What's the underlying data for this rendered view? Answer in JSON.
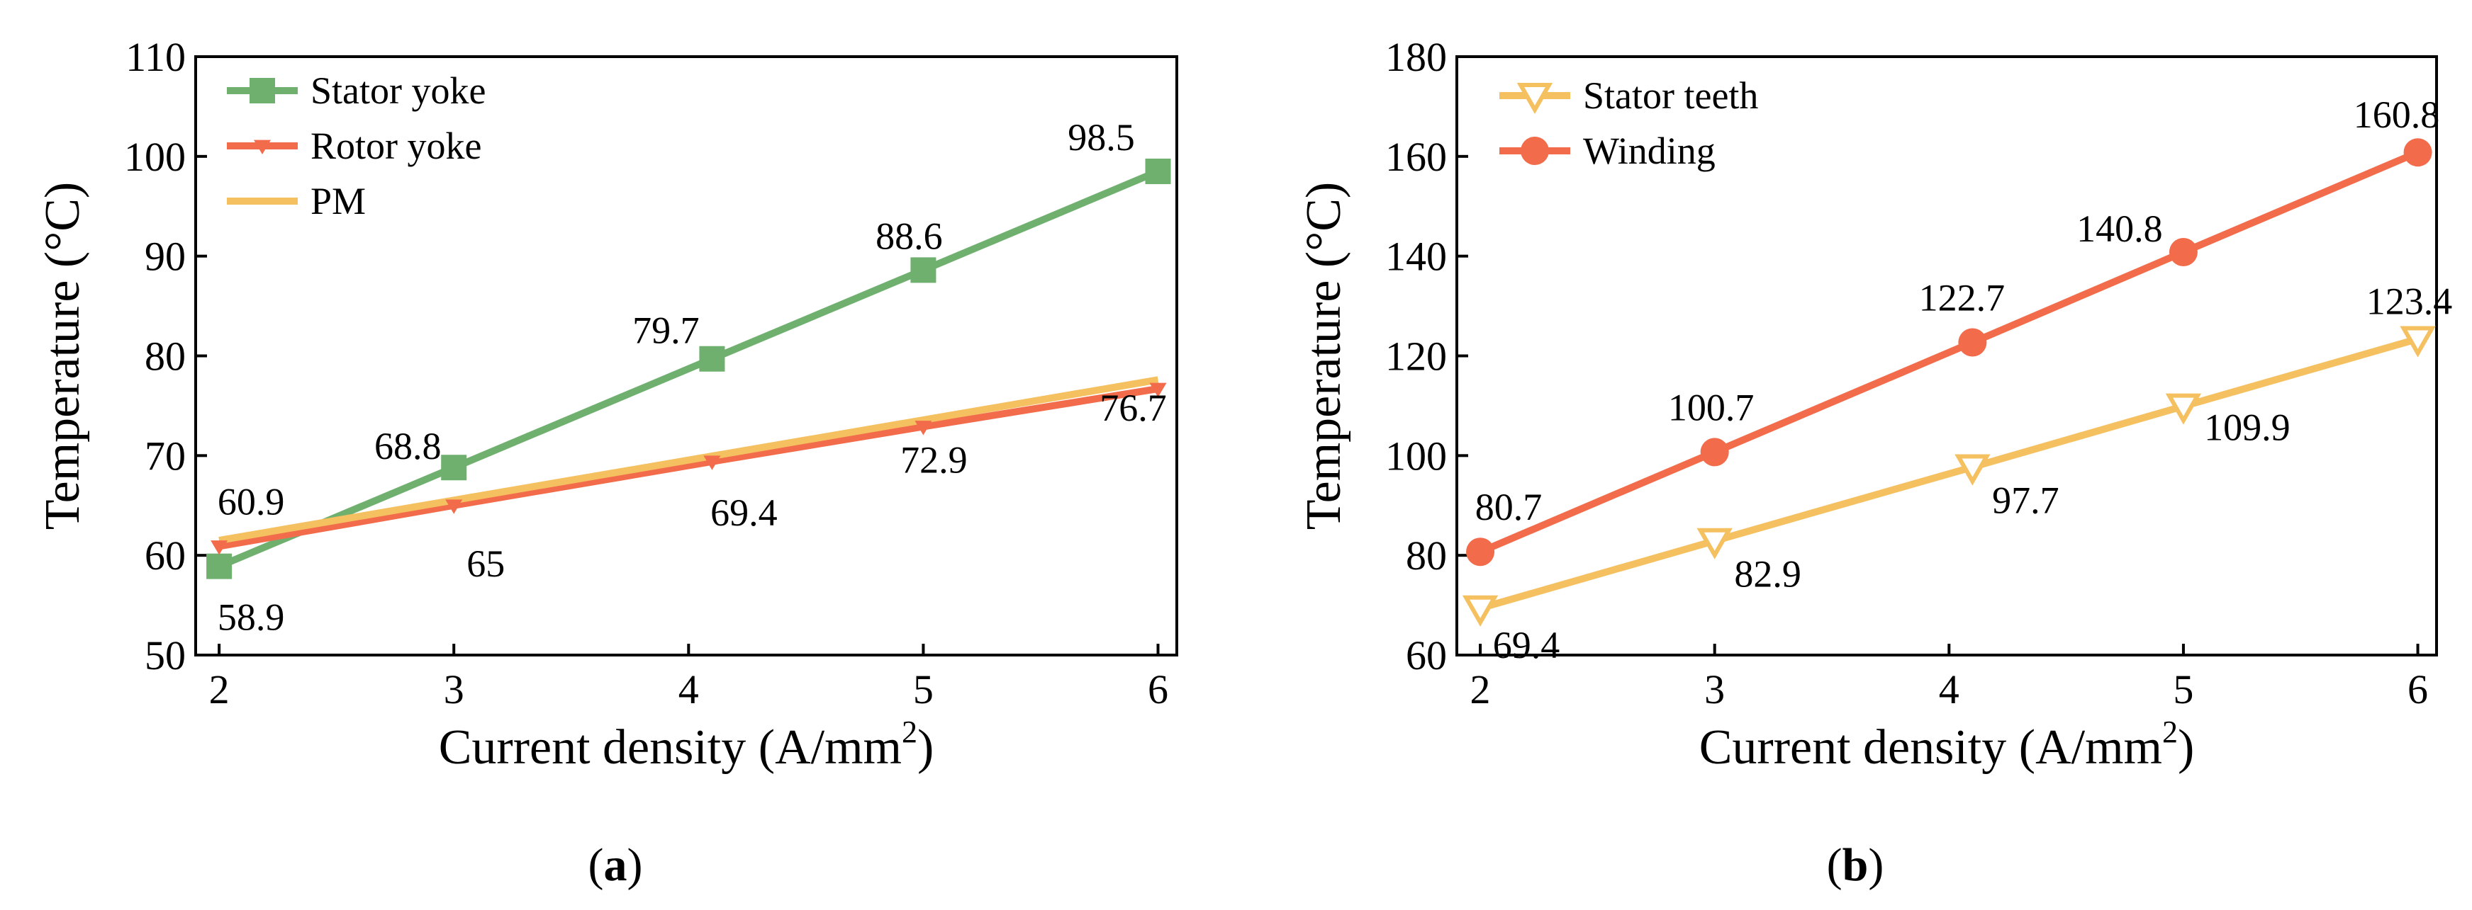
{
  "chart_data": [
    {
      "type": "line",
      "panel": "a",
      "panel_label": "a",
      "xlabel": "Current density  (A/mm",
      "xlabel_sup": "2",
      "xlabel_close": ")",
      "ylabel": "Temperature  (°C)",
      "xlim": [
        1.9,
        6.08
      ],
      "ylim": [
        50,
        110
      ],
      "xticks": [
        2,
        3,
        4,
        5,
        6
      ],
      "yticks": [
        50,
        60,
        70,
        80,
        90,
        100,
        110
      ],
      "legend_position": "top-left",
      "series": [
        {
          "name": "Stator yoke",
          "color": "#6fb06f",
          "marker": "square",
          "x": [
            2,
            3,
            4.1,
            5,
            6
          ],
          "y": [
            58.9,
            68.8,
            79.7,
            88.6,
            98.5
          ],
          "labels": [
            "58.9",
            "68.8",
            "79.7",
            "88.6",
            "98.5"
          ]
        },
        {
          "name": "Rotor yoke",
          "color": "#f26b4a",
          "marker": "triangle-down",
          "x": [
            2,
            3,
            4.1,
            5,
            6
          ],
          "y": [
            60.9,
            65,
            69.4,
            72.9,
            76.7
          ],
          "labels": [
            "60.9",
            "65",
            "69.4",
            "72.9",
            "76.7"
          ]
        },
        {
          "name": "PM",
          "color": "#f5c060",
          "marker": "none",
          "x": [
            2,
            6
          ],
          "y": [
            61.5,
            77.6
          ],
          "labels": []
        }
      ]
    },
    {
      "type": "line",
      "panel": "b",
      "panel_label": "b",
      "xlabel": "Current density (A/mm",
      "xlabel_sup": "2",
      "xlabel_close": ")",
      "ylabel": "Temperature  (°C)",
      "xlim": [
        1.9,
        6.08
      ],
      "ylim": [
        60,
        180
      ],
      "xticks": [
        2,
        3,
        4,
        5,
        6
      ],
      "yticks": [
        60,
        80,
        100,
        120,
        140,
        160,
        180
      ],
      "legend_position": "top-left",
      "series": [
        {
          "name": "Stator teeth",
          "color": "#f5c060",
          "marker": "triangle-down-open",
          "x": [
            2,
            3,
            4.1,
            5,
            6
          ],
          "y": [
            69.4,
            82.9,
            97.7,
            109.9,
            123.4
          ],
          "labels": [
            "69.4",
            "82.9",
            "97.7",
            "109.9",
            "123.4"
          ]
        },
        {
          "name": "Winding",
          "color": "#f26b4a",
          "marker": "circle",
          "x": [
            2,
            3,
            4.1,
            5,
            6
          ],
          "y": [
            80.7,
            100.7,
            122.7,
            140.8,
            160.8
          ],
          "labels": [
            "80.7",
            "100.7",
            "122.7",
            "140.8",
            "160.8"
          ]
        }
      ]
    }
  ]
}
